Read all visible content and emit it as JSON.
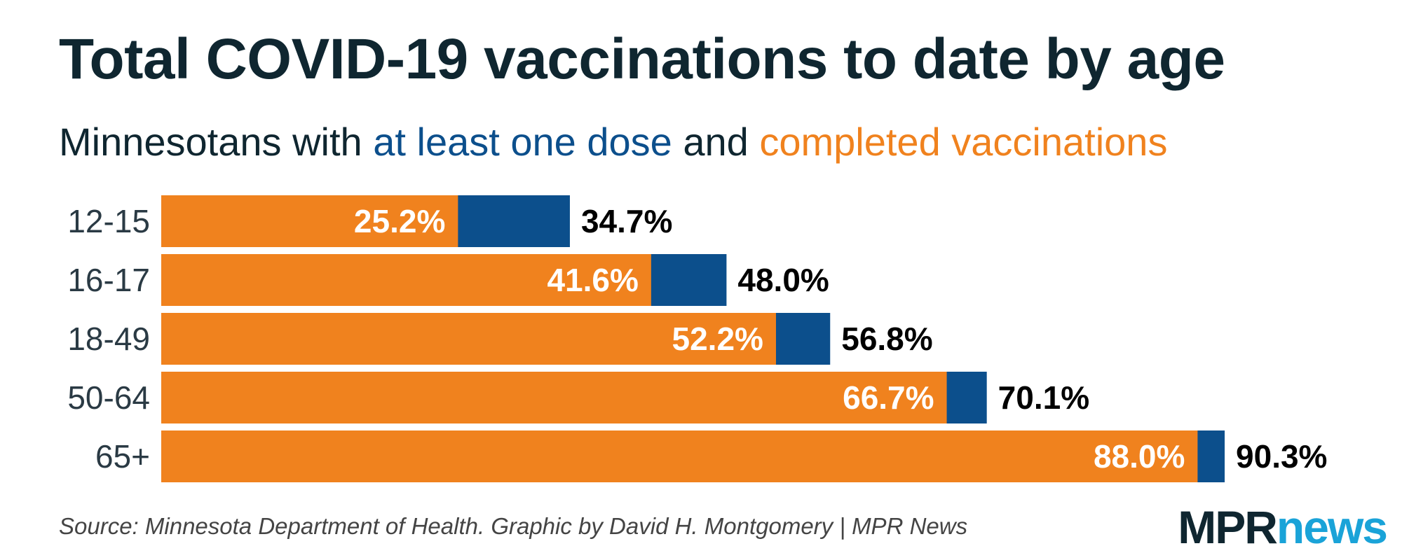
{
  "colors": {
    "completed": "#f0821e",
    "at_least_one_dose": "#0c4f8c",
    "title": "#0f2630"
  },
  "chart_data": {
    "type": "bar",
    "orientation": "horizontal",
    "title": "Total COVID-19 vaccinations to date by age",
    "subtitle": {
      "prefix": "Minnesotans with",
      "dose_text": "at least one dose",
      "middle": "and",
      "completed_text": "completed vaccinations"
    },
    "categories": [
      "12-15",
      "16-17",
      "18-49",
      "50-64",
      "65+"
    ],
    "series": [
      {
        "name": "completed vaccinations",
        "values": [
          25.2,
          41.6,
          52.2,
          66.7,
          88.0
        ]
      },
      {
        "name": "at least one dose",
        "values": [
          34.7,
          48.0,
          56.8,
          70.1,
          90.3
        ]
      }
    ],
    "completed_labels": [
      "25.2%",
      "41.6%",
      "52.2%",
      "66.7%",
      "88.0%"
    ],
    "dose_labels": [
      "34.7%",
      "48.0%",
      "56.8%",
      "70.1%",
      "90.3%"
    ],
    "xlim": [
      0,
      100
    ],
    "xlabel": "",
    "ylabel": ""
  },
  "source": "Source: Minnesota Department of Health. Graphic by David H. Montgomery | MPR News",
  "logo": {
    "part1": "MPR",
    "part2": "news"
  }
}
